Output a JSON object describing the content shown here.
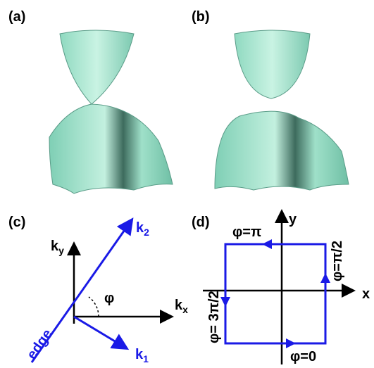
{
  "panels": [
    {
      "label": "(a)"
    },
    {
      "label": "(b)"
    },
    {
      "label": "(c)",
      "k_y": {
        "main": "k",
        "sub": "y"
      },
      "k_x": {
        "main": "k",
        "sub": "x"
      },
      "k_2": {
        "main": "k",
        "sub": "2"
      },
      "k_1": {
        "main": "k",
        "sub": "1"
      },
      "angle": "φ",
      "edge": "edge"
    },
    {
      "label": "(d)",
      "y_axis": "y",
      "x_axis": "x",
      "top": "φ=π",
      "right": "φ=π/2",
      "left": "φ= 3π/2",
      "bottom": "φ=0"
    }
  ]
}
